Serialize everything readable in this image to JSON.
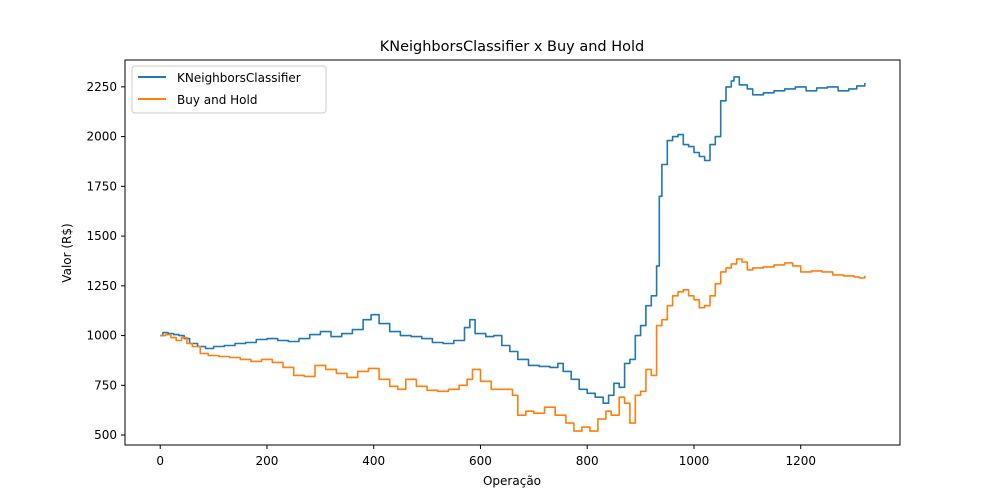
{
  "chart_data": {
    "type": "line",
    "title": "KNeighborsClassifier x Buy and Hold",
    "xlabel": "Operação",
    "ylabel": "Valor (R$)",
    "xlim": [
      -66,
      1386
    ],
    "ylim": [
      450,
      2385
    ],
    "xticks": [
      0,
      200,
      400,
      600,
      800,
      1000,
      1200
    ],
    "yticks": [
      500,
      750,
      1000,
      1250,
      1500,
      1750,
      2000,
      2250
    ],
    "grid": false,
    "legend_position": "top-left",
    "series": [
      {
        "name": "KNeighborsClassifier",
        "color": "#1f77b4",
        "points": [
          [
            0,
            1000
          ],
          [
            5,
            1015
          ],
          [
            15,
            1010
          ],
          [
            25,
            1005
          ],
          [
            35,
            1000
          ],
          [
            45,
            985
          ],
          [
            55,
            960
          ],
          [
            70,
            945
          ],
          [
            85,
            935
          ],
          [
            100,
            945
          ],
          [
            120,
            950
          ],
          [
            140,
            960
          ],
          [
            160,
            965
          ],
          [
            180,
            980
          ],
          [
            200,
            985
          ],
          [
            220,
            975
          ],
          [
            240,
            970
          ],
          [
            260,
            985
          ],
          [
            280,
            1005
          ],
          [
            300,
            1020
          ],
          [
            320,
            995
          ],
          [
            340,
            1010
          ],
          [
            360,
            1030
          ],
          [
            380,
            1080
          ],
          [
            395,
            1105
          ],
          [
            410,
            1060
          ],
          [
            430,
            1020
          ],
          [
            450,
            1000
          ],
          [
            470,
            995
          ],
          [
            490,
            985
          ],
          [
            510,
            965
          ],
          [
            530,
            960
          ],
          [
            550,
            975
          ],
          [
            570,
            1040
          ],
          [
            580,
            1080
          ],
          [
            590,
            1010
          ],
          [
            610,
            995
          ],
          [
            625,
            1000
          ],
          [
            640,
            950
          ],
          [
            655,
            920
          ],
          [
            670,
            880
          ],
          [
            690,
            850
          ],
          [
            710,
            845
          ],
          [
            730,
            840
          ],
          [
            745,
            860
          ],
          [
            755,
            820
          ],
          [
            770,
            780
          ],
          [
            785,
            730
          ],
          [
            800,
            710
          ],
          [
            815,
            690
          ],
          [
            830,
            660
          ],
          [
            840,
            700
          ],
          [
            850,
            760
          ],
          [
            860,
            740
          ],
          [
            870,
            860
          ],
          [
            880,
            880
          ],
          [
            890,
            1000
          ],
          [
            900,
            1050
          ],
          [
            910,
            1150
          ],
          [
            920,
            1200
          ],
          [
            930,
            1350
          ],
          [
            935,
            1700
          ],
          [
            940,
            1860
          ],
          [
            950,
            1980
          ],
          [
            960,
            2000
          ],
          [
            970,
            2010
          ],
          [
            980,
            1960
          ],
          [
            990,
            1950
          ],
          [
            1000,
            1920
          ],
          [
            1010,
            1900
          ],
          [
            1020,
            1880
          ],
          [
            1030,
            1960
          ],
          [
            1040,
            2000
          ],
          [
            1050,
            2180
          ],
          [
            1060,
            2250
          ],
          [
            1070,
            2280
          ],
          [
            1075,
            2300
          ],
          [
            1085,
            2260
          ],
          [
            1100,
            2240
          ],
          [
            1110,
            2210
          ],
          [
            1130,
            2220
          ],
          [
            1150,
            2230
          ],
          [
            1170,
            2240
          ],
          [
            1190,
            2250
          ],
          [
            1210,
            2230
          ],
          [
            1230,
            2245
          ],
          [
            1250,
            2250
          ],
          [
            1270,
            2230
          ],
          [
            1290,
            2240
          ],
          [
            1305,
            2255
          ],
          [
            1320,
            2270
          ]
        ]
      },
      {
        "name": "Buy and Hold",
        "color": "#ff7f0e",
        "points": [
          [
            0,
            1000
          ],
          [
            10,
            1005
          ],
          [
            20,
            990
          ],
          [
            30,
            975
          ],
          [
            40,
            990
          ],
          [
            50,
            960
          ],
          [
            60,
            945
          ],
          [
            75,
            910
          ],
          [
            90,
            900
          ],
          [
            110,
            895
          ],
          [
            130,
            890
          ],
          [
            150,
            880
          ],
          [
            170,
            870
          ],
          [
            190,
            880
          ],
          [
            210,
            865
          ],
          [
            230,
            840
          ],
          [
            250,
            800
          ],
          [
            270,
            795
          ],
          [
            290,
            850
          ],
          [
            310,
            830
          ],
          [
            330,
            810
          ],
          [
            350,
            790
          ],
          [
            370,
            820
          ],
          [
            390,
            835
          ],
          [
            410,
            780
          ],
          [
            430,
            745
          ],
          [
            445,
            730
          ],
          [
            460,
            780
          ],
          [
            480,
            745
          ],
          [
            500,
            725
          ],
          [
            520,
            720
          ],
          [
            540,
            730
          ],
          [
            560,
            750
          ],
          [
            575,
            780
          ],
          [
            585,
            830
          ],
          [
            600,
            770
          ],
          [
            620,
            730
          ],
          [
            640,
            730
          ],
          [
            660,
            700
          ],
          [
            670,
            600
          ],
          [
            685,
            620
          ],
          [
            700,
            610
          ],
          [
            720,
            640
          ],
          [
            740,
            600
          ],
          [
            760,
            560
          ],
          [
            775,
            520
          ],
          [
            790,
            540
          ],
          [
            805,
            520
          ],
          [
            820,
            580
          ],
          [
            835,
            620
          ],
          [
            845,
            600
          ],
          [
            860,
            690
          ],
          [
            870,
            660
          ],
          [
            880,
            560
          ],
          [
            890,
            700
          ],
          [
            900,
            720
          ],
          [
            910,
            830
          ],
          [
            920,
            800
          ],
          [
            930,
            1050
          ],
          [
            940,
            1080
          ],
          [
            950,
            1150
          ],
          [
            960,
            1200
          ],
          [
            970,
            1220
          ],
          [
            980,
            1230
          ],
          [
            990,
            1200
          ],
          [
            1000,
            1180
          ],
          [
            1010,
            1140
          ],
          [
            1020,
            1150
          ],
          [
            1030,
            1200
          ],
          [
            1040,
            1260
          ],
          [
            1050,
            1320
          ],
          [
            1060,
            1340
          ],
          [
            1070,
            1360
          ],
          [
            1080,
            1385
          ],
          [
            1090,
            1370
          ],
          [
            1100,
            1330
          ],
          [
            1110,
            1340
          ],
          [
            1130,
            1345
          ],
          [
            1150,
            1355
          ],
          [
            1170,
            1365
          ],
          [
            1185,
            1350
          ],
          [
            1200,
            1320
          ],
          [
            1220,
            1325
          ],
          [
            1240,
            1320
          ],
          [
            1260,
            1305
          ],
          [
            1280,
            1300
          ],
          [
            1300,
            1295
          ],
          [
            1310,
            1290
          ],
          [
            1320,
            1300
          ]
        ]
      }
    ]
  }
}
